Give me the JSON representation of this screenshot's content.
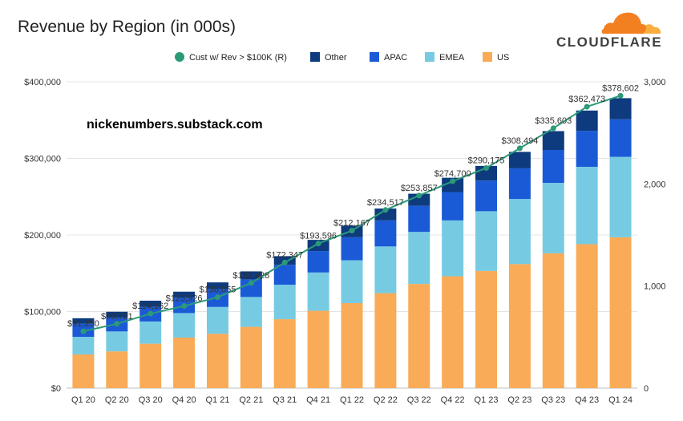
{
  "brand": {
    "name": "CLOUDFLARE",
    "cloud_colors": [
      "#f38020",
      "#faae40"
    ]
  },
  "watermark": "nickenumbers.substack.com",
  "chart_data": {
    "type": "bar",
    "stacked": true,
    "title": "Revenue by Region (in 000s)",
    "categories": [
      "Q1 20",
      "Q2 20",
      "Q3 20",
      "Q4 20",
      "Q1 21",
      "Q2 21",
      "Q3 21",
      "Q4 21",
      "Q1 22",
      "Q2 22",
      "Q3 22",
      "Q4 22",
      "Q1 23",
      "Q2 23",
      "Q3 23",
      "Q4 23",
      "Q1 24"
    ],
    "totals_labels": [
      "$91,250",
      "$99,721",
      "$114,162",
      "$125,926",
      "$138,055",
      "$152,428",
      "$172,347",
      "$193,596",
      "$212,167",
      "$234,517",
      "$253,857",
      "$274,700",
      "$290,175",
      "$308,494",
      "$335,603",
      "$362,473",
      "$378,602"
    ],
    "series": [
      {
        "name": "US",
        "color": "#f9ab57",
        "values": [
          44000,
          48000,
          58000,
          66000,
          71000,
          80000,
          90000,
          101000,
          111000,
          124000,
          136000,
          146000,
          153000,
          162000,
          176000,
          188000,
          197000
        ]
      },
      {
        "name": "EMEA",
        "color": "#76cbe3",
        "values": [
          23000,
          26000,
          29000,
          32000,
          35000,
          39000,
          45000,
          50000,
          56000,
          61000,
          68000,
          73000,
          78000,
          85000,
          92000,
          101000,
          105000
        ]
      },
      {
        "name": "APAC",
        "color": "#1b5ad6",
        "values": [
          17000,
          18000,
          19000,
          20000,
          23000,
          23000,
          26000,
          28000,
          30000,
          34000,
          34000,
          37000,
          40000,
          40000,
          43000,
          47000,
          49000
        ]
      },
      {
        "name": "Other",
        "color": "#0d3b7d",
        "values": [
          7250,
          7721,
          8162,
          7926,
          9055,
          10428,
          11347,
          14596,
          15167,
          15517,
          15857,
          18700,
          19175,
          21494,
          24603,
          26473,
          27602
        ]
      }
    ],
    "line_series": {
      "name": "Cust w/ Rev > $100K (R)",
      "color": "#2c9a78",
      "values": [
        556,
        630,
        729,
        804,
        890,
        1030,
        1230,
        1416,
        1542,
        1745,
        1886,
        2026,
        2156,
        2349,
        2545,
        2756,
        2864
      ]
    },
    "ylim": [
      0,
      400000
    ],
    "y_ticks": [
      0,
      100000,
      200000,
      300000,
      400000
    ],
    "y_tick_labels": [
      "$0",
      "$100,000",
      "$200,000",
      "$300,000",
      "$400,000"
    ],
    "y2lim": [
      0,
      3000
    ],
    "y2_ticks": [
      0,
      1000,
      2000,
      3000
    ],
    "y2_tick_labels": [
      "0",
      "1,000",
      "2,000",
      "3,000"
    ],
    "legend_order": [
      "Cust w/ Rev > $100K (R)",
      "Other",
      "APAC",
      "EMEA",
      "US"
    ],
    "legend_placement": "top-center",
    "grid": true
  }
}
